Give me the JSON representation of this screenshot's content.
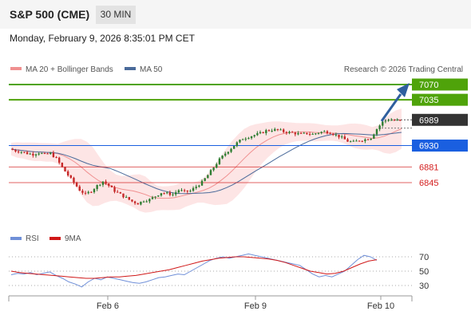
{
  "header": {
    "title": "S&P 500 (CME)",
    "interval": "30 MIN",
    "datetime": "Monday, February 9, 2026 8:35:01 PM CET"
  },
  "legend": {
    "bollinger": "MA 20 + Bollinger Bands",
    "ma50": "MA 50",
    "copyright": "Research © 2026 Trading Central"
  },
  "rsi_legend": {
    "rsi": "RSI",
    "ma9": "9MA"
  },
  "x_labels": [
    "Feb 6",
    "Feb 9",
    "Feb 10"
  ],
  "levels": [
    {
      "value": 7070,
      "label": "7070",
      "kind": "resistance",
      "color": "#4fa30a"
    },
    {
      "value": 7035,
      "label": "7035",
      "kind": "resistance",
      "color": "#4fa30a"
    },
    {
      "value": 6989,
      "label": "6989",
      "kind": "current",
      "color": "#333333"
    },
    {
      "value": 6930,
      "label": "6930",
      "kind": "pivot",
      "color": "#1a5fe0"
    },
    {
      "value": 6881,
      "label": "6881",
      "kind": "support",
      "color": "#d42020"
    },
    {
      "value": 6845,
      "label": "6845",
      "kind": "support",
      "color": "#d42020"
    }
  ],
  "colors": {
    "up": "#2e7d32",
    "down": "#c62828",
    "band_fill": "#fde0e0",
    "ma20": "#f09090",
    "ma50": "#4a6a9a",
    "rsi": "#6f8fd8",
    "rsi_ma": "#d01818",
    "arrow": "#2f5f9e"
  },
  "chart_data": {
    "type": "candlestick",
    "y_axis_labels": [
      7070,
      7035,
      6989,
      6930,
      6881,
      6845
    ],
    "price_path": [
      6922,
      6918,
      6916,
      6912,
      6910,
      6914,
      6909,
      6912,
      6900,
      6880,
      6862,
      6845,
      6828,
      6818,
      6826,
      6838,
      6848,
      6838,
      6826,
      6818,
      6810,
      6802,
      6797,
      6804,
      6806,
      6814,
      6822,
      6820,
      6818,
      6828,
      6824,
      6826,
      6836,
      6846,
      6862,
      6880,
      6898,
      6912,
      6924,
      6936,
      6946,
      6950,
      6954,
      6958,
      6964,
      6966,
      6966,
      6962,
      6960,
      6958,
      6956,
      6958,
      6956,
      6960,
      6962,
      6960,
      6954,
      6948,
      6940,
      6938,
      6942,
      6944,
      6948,
      6968,
      6984,
      6990,
      6988,
      6987
    ],
    "rsi": {
      "name": "RSI",
      "yticks": [
        70,
        50,
        30
      ],
      "values": [
        45,
        47,
        46,
        48,
        45,
        47,
        49,
        44,
        40,
        35,
        32,
        28,
        35,
        40,
        38,
        42,
        40,
        38,
        36,
        34,
        33,
        35,
        38,
        41,
        42,
        44,
        46,
        45,
        50,
        55,
        60,
        65,
        68,
        70,
        68,
        70,
        72,
        74,
        72,
        70,
        68,
        66,
        64,
        62,
        60,
        58,
        52,
        46,
        42,
        44,
        42,
        46,
        50,
        58,
        66,
        72,
        70,
        65
      ],
      "ma9": [
        50,
        48,
        47,
        46,
        45,
        44,
        43,
        42,
        41,
        40,
        40,
        41,
        42,
        42,
        43,
        44,
        46,
        48,
        50,
        52,
        55,
        58,
        61,
        64,
        66,
        68,
        69,
        70,
        70,
        69,
        68,
        67,
        65,
        62,
        58,
        54,
        50,
        48,
        46,
        47,
        50,
        55,
        60,
        64,
        66
      ]
    }
  }
}
